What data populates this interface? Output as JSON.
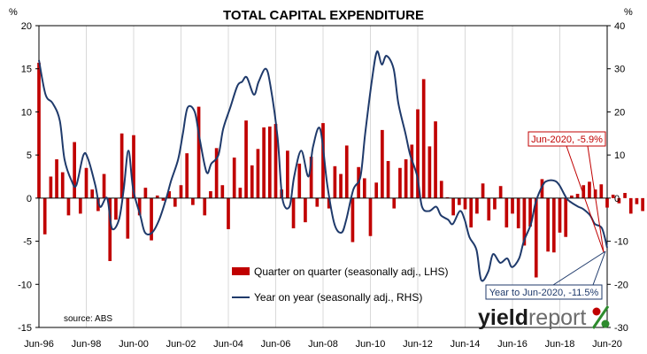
{
  "chart_data": {
    "type": "bar+line",
    "title": "TOTAL CAPITAL EXPENDITURE",
    "left_axis": {
      "unit": "%",
      "ylim": [
        -15,
        20
      ],
      "ticks": [
        -15,
        -10,
        -5,
        0,
        5,
        10,
        15,
        20
      ]
    },
    "right_axis": {
      "unit": "%",
      "ylim": [
        -30,
        40
      ],
      "ticks": [
        -30,
        -20,
        -10,
        0,
        10,
        20,
        30,
        40
      ]
    },
    "x_range": [
      1996.42,
      2020.42
    ],
    "x_ticks": [
      "Jun-96",
      "Jun-98",
      "Jun-00",
      "Jun-02",
      "Jun-04",
      "Jun-06",
      "Jun-08",
      "Jun-10",
      "Jun-12",
      "Jun-14",
      "Jun-16",
      "Jun-18",
      "Jun-20"
    ],
    "grid": "vertical",
    "series": [
      {
        "name": "Quarter on quarter (seasonally adj., LHS)",
        "type": "bar",
        "axis": "left",
        "color": "#c00000",
        "start": "Jun-96",
        "frequency": "quarterly",
        "values": [
          15.7,
          -4.2,
          2.5,
          4.5,
          3.0,
          -2.0,
          6.5,
          -1.8,
          3.5,
          1.0,
          -1.5,
          2.8,
          -7.3,
          -2.5,
          7.5,
          -4.7,
          7.3,
          -2.0,
          1.2,
          -4.9,
          0.3,
          -0.3,
          0.8,
          -1.0,
          1.5,
          5.2,
          -0.8,
          10.6,
          -2.0,
          0.8,
          5.8,
          1.5,
          -3.6,
          4.7,
          1.2,
          9.0,
          3.8,
          5.7,
          8.2,
          8.3,
          8.6,
          1.0,
          5.5,
          -3.5,
          4.0,
          -2.8,
          4.8,
          -1.0,
          8.7,
          -1.2,
          3.7,
          2.8,
          6.1,
          -5.1,
          3.6,
          2.3,
          -4.4,
          1.8,
          7.9,
          4.3,
          -1.2,
          3.5,
          4.5,
          6.2,
          10.3,
          13.8,
          6.0,
          8.9,
          2.0,
          0.1,
          -2.0,
          -0.8,
          -1.3,
          -3.4,
          -1.8,
          1.7,
          -2.6,
          -1.3,
          1.4,
          -3.4,
          -1.8,
          -3.5,
          -5.5,
          -3.3,
          -9.2,
          2.2,
          -6.2,
          -6.3,
          -4.0,
          -4.5,
          0.3,
          0.5,
          1.5,
          1.9,
          1.0,
          1.6,
          -1.1,
          0.4,
          -0.6,
          0.6,
          -1.8,
          -0.7,
          -1.5,
          0.5,
          -0.9,
          -2.4,
          -5.9
        ]
      },
      {
        "name": "Year on year (seasonally adj., RHS)",
        "type": "line",
        "axis": "right",
        "color": "#1f3a6b",
        "points": [
          [
            1996.42,
            32
          ],
          [
            1996.7,
            24
          ],
          [
            1997.0,
            22
          ],
          [
            1997.3,
            18
          ],
          [
            1997.5,
            9
          ],
          [
            1997.8,
            4
          ],
          [
            1998.0,
            3
          ],
          [
            1998.3,
            10
          ],
          [
            1998.5,
            9
          ],
          [
            1998.8,
            3
          ],
          [
            1999.0,
            -2
          ],
          [
            1999.3,
            0
          ],
          [
            1999.5,
            -7
          ],
          [
            1999.8,
            -5
          ],
          [
            2000.0,
            2
          ],
          [
            2000.2,
            11
          ],
          [
            2000.4,
            2
          ],
          [
            2000.7,
            -4
          ],
          [
            2000.9,
            -8
          ],
          [
            2001.2,
            -8
          ],
          [
            2001.5,
            -5
          ],
          [
            2001.8,
            0
          ],
          [
            2002.0,
            4
          ],
          [
            2002.3,
            9
          ],
          [
            2002.5,
            15
          ],
          [
            2002.7,
            21
          ],
          [
            2003.0,
            20
          ],
          [
            2003.2,
            14
          ],
          [
            2003.5,
            6
          ],
          [
            2003.7,
            8
          ],
          [
            2004.0,
            10
          ],
          [
            2004.2,
            16
          ],
          [
            2004.5,
            21
          ],
          [
            2004.8,
            26
          ],
          [
            2005.0,
            27
          ],
          [
            2005.2,
            28
          ],
          [
            2005.5,
            24
          ],
          [
            2005.7,
            27
          ],
          [
            2006.0,
            30
          ],
          [
            2006.2,
            26
          ],
          [
            2006.5,
            14
          ],
          [
            2006.7,
            0
          ],
          [
            2007.0,
            -2
          ],
          [
            2007.2,
            5
          ],
          [
            2007.5,
            11
          ],
          [
            2007.8,
            5
          ],
          [
            2008.0,
            12
          ],
          [
            2008.3,
            16
          ],
          [
            2008.6,
            3
          ],
          [
            2008.9,
            -6
          ],
          [
            2009.2,
            -8
          ],
          [
            2009.4,
            -5
          ],
          [
            2009.7,
            2
          ],
          [
            2010.0,
            5
          ],
          [
            2010.2,
            15
          ],
          [
            2010.5,
            28
          ],
          [
            2010.7,
            34
          ],
          [
            2010.9,
            31
          ],
          [
            2011.1,
            33
          ],
          [
            2011.4,
            30
          ],
          [
            2011.6,
            22
          ],
          [
            2011.9,
            15
          ],
          [
            2012.1,
            10
          ],
          [
            2012.4,
            5
          ],
          [
            2012.6,
            -2
          ],
          [
            2012.9,
            -3
          ],
          [
            2013.2,
            -2
          ],
          [
            2013.4,
            -4
          ],
          [
            2013.7,
            -5
          ],
          [
            2013.9,
            -6
          ],
          [
            2014.2,
            -3
          ],
          [
            2014.4,
            -5
          ],
          [
            2014.6,
            -9
          ],
          [
            2014.9,
            -12
          ],
          [
            2015.1,
            -19
          ],
          [
            2015.4,
            -17
          ],
          [
            2015.6,
            -13
          ],
          [
            2015.9,
            -15
          ],
          [
            2016.2,
            -14
          ],
          [
            2016.4,
            -16
          ],
          [
            2016.7,
            -14
          ],
          [
            2016.9,
            -10
          ],
          [
            2017.2,
            -6
          ],
          [
            2017.4,
            -1
          ],
          [
            2017.7,
            3
          ],
          [
            2017.9,
            4
          ],
          [
            2018.2,
            4
          ],
          [
            2018.4,
            3
          ],
          [
            2018.7,
            0
          ],
          [
            2018.9,
            -1
          ],
          [
            2019.2,
            -2
          ],
          [
            2019.4,
            -2.5
          ],
          [
            2019.7,
            -4
          ],
          [
            2019.9,
            -6
          ],
          [
            2020.2,
            -7
          ],
          [
            2020.42,
            -11.5
          ]
        ]
      }
    ],
    "annotations": [
      {
        "label": "Jun-2020, -5.9%",
        "color": "#c00000",
        "series": 0,
        "target_x": 2020.42,
        "target_y": -5.9
      },
      {
        "label": "Year to Jun-2020, -11.5%",
        "color": "#1f3a6b",
        "series": 1,
        "target_x": 2020.42,
        "target_y": -11.5
      }
    ],
    "source": "source: ABS",
    "legend_position": "bottom-center"
  },
  "brand": {
    "name_part1": "yield",
    "name_part2": "report",
    "symbol": "%",
    "colors": {
      "yield": "#1a1a1a",
      "report": "#6b6b6b",
      "symbol_red": "#c00000",
      "symbol_green": "#2e8b2e"
    }
  }
}
